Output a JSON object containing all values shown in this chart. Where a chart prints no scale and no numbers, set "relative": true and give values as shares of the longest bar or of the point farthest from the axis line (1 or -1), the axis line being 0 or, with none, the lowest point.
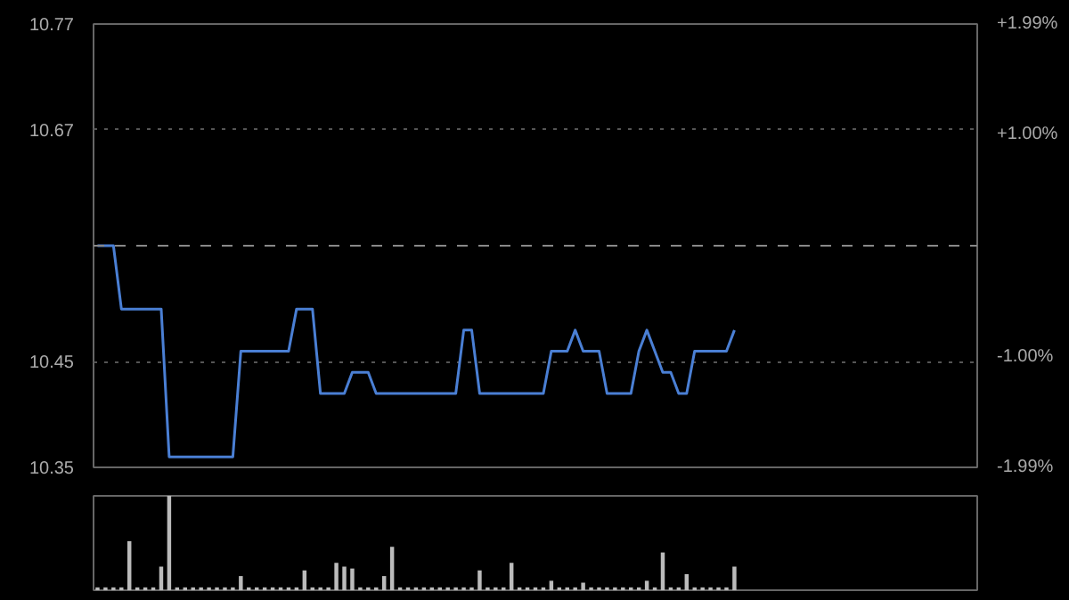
{
  "chart_data": [
    {
      "type": "line",
      "categories": [
        null,
        null,
        null,
        null,
        null,
        null,
        null,
        null,
        null,
        null,
        null,
        null,
        null,
        null,
        null,
        null,
        null,
        null,
        null,
        null,
        null,
        null,
        null,
        null,
        null,
        null,
        null,
        null,
        null,
        null,
        null,
        null,
        null,
        null,
        null,
        null,
        null,
        null,
        null,
        null,
        null,
        null,
        null,
        null,
        null,
        null,
        null,
        null,
        null,
        null,
        null,
        null,
        null,
        null,
        null,
        null,
        null,
        null,
        null,
        null,
        null,
        null,
        null,
        null,
        null,
        null,
        null,
        null,
        null,
        null,
        null,
        null,
        null,
        null,
        null,
        null,
        null,
        null,
        null,
        null,
        null,
        null,
        null,
        null,
        null,
        null,
        null,
        null,
        null,
        null,
        null,
        null,
        null,
        null,
        null,
        null,
        null,
        null,
        null,
        null,
        null,
        null,
        null,
        null,
        null,
        null,
        null,
        null,
        null,
        null,
        null
      ],
      "ylim": [
        10.35,
        10.77
      ],
      "yticks": [
        10.35,
        10.45,
        10.67,
        10.77
      ],
      "y2lim": [
        -1.99,
        1.99
      ],
      "y2ticks": [
        {
          "value": -1.99,
          "label": "-1.99%"
        },
        {
          "value": -1.0,
          "label": "-1.00%"
        },
        {
          "value": 1.0,
          "label": "+1.00%"
        },
        {
          "value": 1.99,
          "label": "+1.99%"
        }
      ],
      "tick_labels": "y",
      "grid": "y",
      "line_style": "solid",
      "ref_lines": [
        {
          "axis": "y",
          "value": 10.56,
          "line_style": "dashed",
          "color": "#888888"
        }
      ],
      "series": [
        {
          "color": "#4a7fd4",
          "values": [
            10.56,
            10.56,
            10.56,
            10.5,
            10.5,
            10.5,
            10.5,
            10.5,
            10.5,
            10.36,
            10.36,
            10.36,
            10.36,
            10.36,
            10.36,
            10.36,
            10.36,
            10.36,
            10.46,
            10.46,
            10.46,
            10.46,
            10.46,
            10.46,
            10.46,
            10.5,
            10.5,
            10.5,
            10.42,
            10.42,
            10.42,
            10.42,
            10.44,
            10.44,
            10.44,
            10.42,
            10.42,
            10.42,
            10.42,
            10.42,
            10.42,
            10.42,
            10.42,
            10.42,
            10.42,
            10.42,
            10.48,
            10.48,
            10.42,
            10.42,
            10.42,
            10.42,
            10.42,
            10.42,
            10.42,
            10.42,
            10.42,
            10.46,
            10.46,
            10.46,
            10.48,
            10.46,
            10.46,
            10.46,
            10.42,
            10.42,
            10.42,
            10.42,
            10.46,
            10.48,
            10.46,
            10.44,
            10.44,
            10.42,
            10.42,
            10.46,
            10.46,
            10.46,
            10.46,
            10.46,
            10.48,
            null,
            null,
            null,
            null,
            null,
            null,
            null,
            null,
            null,
            null,
            null,
            null,
            null,
            null,
            null,
            null,
            null,
            null,
            null,
            null,
            null,
            null,
            null,
            null,
            null,
            null,
            null,
            null,
            null,
            null
          ]
        }
      ]
    },
    {
      "type": "bar",
      "relative": true,
      "categories": [
        null,
        null,
        null,
        null,
        null,
        null,
        null,
        null,
        null,
        null,
        null,
        null,
        null,
        null,
        null,
        null,
        null,
        null,
        null,
        null,
        null,
        null,
        null,
        null,
        null,
        null,
        null,
        null,
        null,
        null,
        null,
        null,
        null,
        null,
        null,
        null,
        null,
        null,
        null,
        null,
        null,
        null,
        null,
        null,
        null,
        null,
        null,
        null,
        null,
        null,
        null,
        null,
        null,
        null,
        null,
        null,
        null,
        null,
        null,
        null,
        null,
        null,
        null,
        null,
        null,
        null,
        null,
        null,
        null,
        null,
        null,
        null,
        null,
        null,
        null,
        null,
        null,
        null,
        null,
        null,
        null,
        null,
        null,
        null,
        null,
        null,
        null,
        null,
        null,
        null,
        null,
        null,
        null,
        null,
        null,
        null,
        null,
        null,
        null,
        null,
        null,
        null,
        null,
        null,
        null,
        null,
        null,
        null,
        null,
        null,
        null
      ],
      "tick_labels": false,
      "series": [
        {
          "color": "#bbbbbb",
          "values": [
            0.03,
            0.03,
            0.03,
            0.03,
            0.52,
            0.03,
            0.03,
            0.03,
            0.25,
            1,
            0.03,
            0.03,
            0.03,
            0.03,
            0.03,
            0.03,
            0.03,
            0.03,
            0.15,
            0.03,
            0.03,
            0.03,
            0.03,
            0.03,
            0.03,
            0.03,
            0.21,
            0.03,
            0.03,
            0.03,
            0.29,
            0.25,
            0.23,
            0.03,
            0.03,
            0.03,
            0.15,
            0.46,
            0.03,
            0.03,
            0.03,
            0.03,
            0.03,
            0.03,
            0.03,
            0.03,
            0.03,
            0.03,
            0.21,
            0.03,
            0.03,
            0.03,
            0.29,
            0.03,
            0.03,
            0.03,
            0.03,
            0.1,
            0.03,
            0.03,
            0.03,
            0.08,
            0.03,
            0.03,
            0.03,
            0.03,
            0.03,
            0.03,
            0.03,
            0.1,
            0.03,
            0.4,
            0.03,
            0.03,
            0.17,
            0.03,
            0.03,
            0.03,
            0.03,
            0.03,
            0.25,
            null,
            null,
            null,
            null,
            null,
            null,
            null,
            null,
            null,
            null,
            null,
            null,
            null,
            null,
            null,
            null,
            null,
            null,
            null,
            null,
            null,
            null,
            null,
            null,
            null,
            null,
            null,
            null,
            null,
            null
          ]
        }
      ]
    }
  ]
}
